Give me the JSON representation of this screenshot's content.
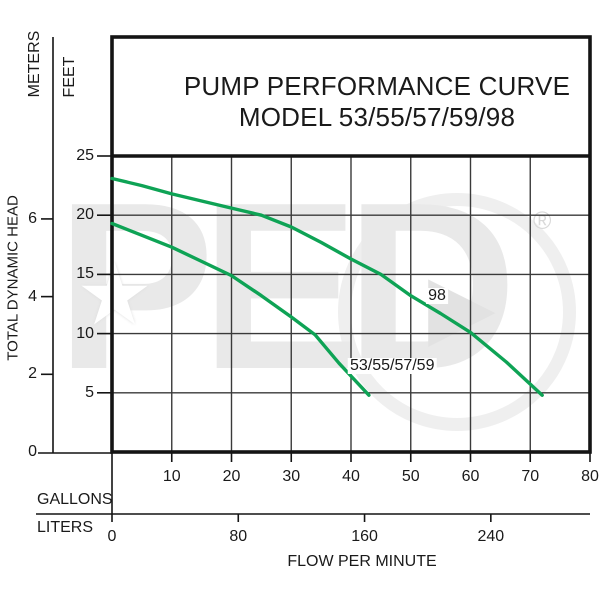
{
  "colors": {
    "curve_green": "#0ea355",
    "line_black": "#141414",
    "grid_gray": "#3a3a3a",
    "text": "#1a1a1a",
    "watermark_gray": "#e9e9e9"
  },
  "title": {
    "line1": "PUMP PERFORMANCE CURVE",
    "line2": "MODEL 53/55/57/59/98"
  },
  "watermark": {
    "logo_text": "PED",
    "star_glyph": "★",
    "arrow_glyph": "▶",
    "registered_glyph": "®"
  },
  "chart_data": {
    "type": "line",
    "title": "PUMP PERFORMANCE CURVE MODEL 53/55/57/59/98",
    "grid": true,
    "legend_position": "inline-curve-labels",
    "x_axis": {
      "label": "FLOW PER MINUTE",
      "primary_unit": "GALLONS",
      "secondary_unit": "LITERS",
      "range_gallons": [
        0,
        80
      ],
      "gallon_ticks": [
        10,
        20,
        30,
        40,
        50,
        60,
        70,
        80
      ],
      "liter_ticks": [
        0,
        80,
        160,
        240
      ]
    },
    "y_axis": {
      "label": "TOTAL DYNAMIC HEAD",
      "primary_unit": "FEET",
      "secondary_unit": "METERS",
      "range_feet": [
        0,
        25
      ],
      "feet_ticks": [
        25,
        20,
        15,
        10,
        5
      ],
      "meter_ticks": [
        6,
        4,
        2,
        0
      ]
    },
    "series": [
      {
        "name": "98",
        "color": "#0ea355",
        "points_gal_ft": [
          [
            0,
            23.1
          ],
          [
            5,
            22.5
          ],
          [
            10,
            21.8
          ],
          [
            15,
            21.2
          ],
          [
            20,
            20.6
          ],
          [
            25,
            20.0
          ],
          [
            30,
            19.0
          ],
          [
            35,
            17.7
          ],
          [
            40,
            16.3
          ],
          [
            45,
            15.0
          ],
          [
            50,
            13.2
          ],
          [
            55,
            11.7
          ],
          [
            60,
            10.1
          ],
          [
            66,
            7.6
          ],
          [
            72,
            4.8
          ]
        ],
        "label_at_gal_ft": [
          54.4,
          13.2
        ]
      },
      {
        "name": "53/55/57/59",
        "color": "#0ea355",
        "points_gal_ft": [
          [
            0,
            19.3
          ],
          [
            5,
            18.3
          ],
          [
            10,
            17.3
          ],
          [
            15,
            16.1
          ],
          [
            20,
            14.9
          ],
          [
            25,
            13.2
          ],
          [
            30,
            11.4
          ],
          [
            34,
            9.9
          ],
          [
            38,
            7.5
          ],
          [
            43,
            4.8
          ]
        ],
        "label_at_gal_ft": [
          46.9,
          7.3
        ]
      }
    ]
  }
}
